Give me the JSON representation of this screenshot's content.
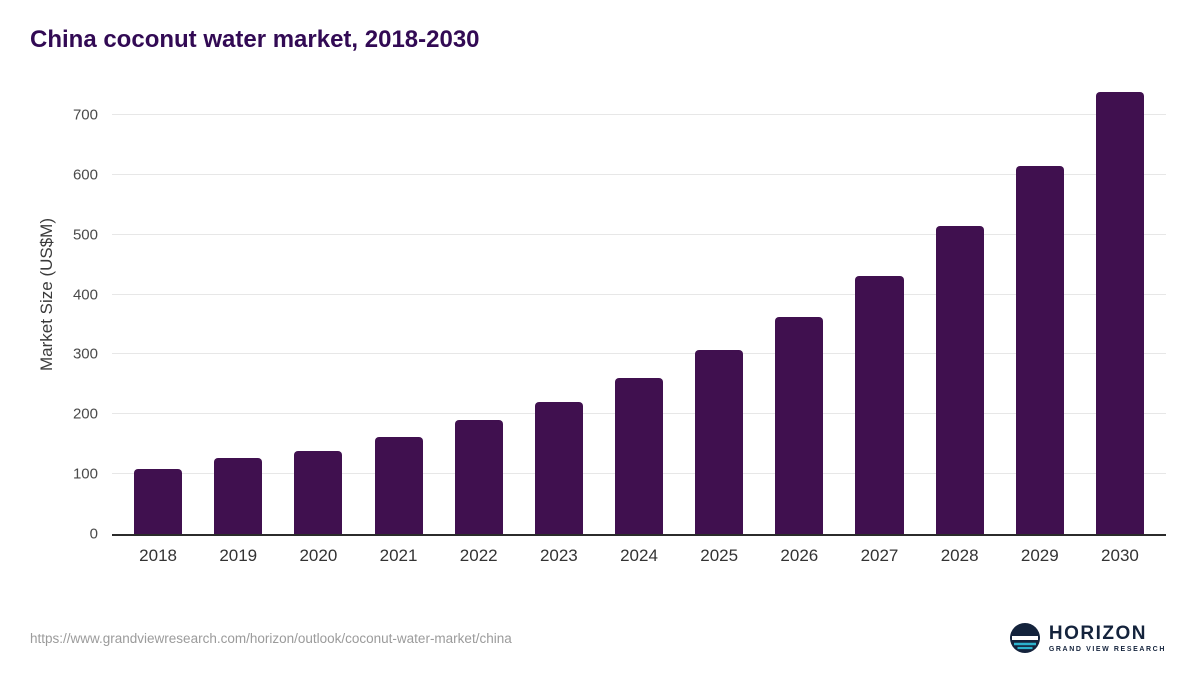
{
  "header": {
    "title": "China coconut water market, 2018-2030"
  },
  "chart_data": {
    "type": "bar",
    "title": "China coconut water market, 2018-2030",
    "categories": [
      "2018",
      "2019",
      "2020",
      "2021",
      "2022",
      "2023",
      "2024",
      "2025",
      "2026",
      "2027",
      "2028",
      "2029",
      "2030"
    ],
    "values": [
      108,
      127,
      139,
      162,
      190,
      221,
      261,
      307,
      363,
      431,
      514,
      615,
      738
    ],
    "xlabel": "",
    "ylabel": "Market Size (US$M)",
    "yticks": [
      0,
      100,
      200,
      300,
      400,
      500,
      600,
      700
    ],
    "ylim": [
      0,
      752
    ],
    "bar_color": "#40104f",
    "grid": true,
    "legend": "none"
  },
  "footer": {
    "source_url": "https://www.grandviewresearch.com/horizon/outlook/coconut-water-market/china",
    "logo": {
      "name": "HORIZON",
      "subtitle": "GRAND VIEW RESEARCH",
      "icon": "horizon-circle-icon",
      "navy": "#14233c",
      "teal": "#2cb3cd"
    }
  }
}
